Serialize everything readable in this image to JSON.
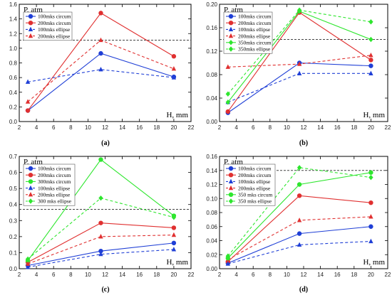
{
  "chart_data": [
    {
      "type": "line",
      "panel": "(a)",
      "ylabel": "P, atm",
      "xlabel": "H, mm",
      "xlim": [
        2,
        22
      ],
      "ylim": [
        0,
        1.6
      ],
      "xticks": [
        2,
        4,
        6,
        8,
        10,
        12,
        14,
        16,
        18,
        20,
        22
      ],
      "yticks": [
        0.0,
        0.2,
        0.4,
        0.6,
        0.8,
        1.0,
        1.2,
        1.4,
        1.6
      ],
      "ytick_labels": [
        "0.0",
        "0.2",
        "0.4",
        "0.6",
        "0.8",
        "1.0",
        "1.2",
        "1.4",
        "1.6"
      ],
      "reference_line": 1.11,
      "legend_position": "top-left",
      "series": [
        {
          "name": "100mks circum",
          "color": "#1f3fd6",
          "dash": "solid",
          "marker": "circle",
          "x": [
            3,
            11.5,
            20
          ],
          "y": [
            0.15,
            0.93,
            0.61
          ]
        },
        {
          "name": "200mks circum",
          "color": "#e03030",
          "dash": "solid",
          "marker": "circle",
          "x": [
            3,
            11.5,
            20
          ],
          "y": [
            0.15,
            1.48,
            0.89
          ]
        },
        {
          "name": "100mks ellipse",
          "color": "#1f3fd6",
          "dash": "dashed",
          "marker": "triangle",
          "x": [
            3,
            11.5,
            20
          ],
          "y": [
            0.54,
            0.71,
            0.6
          ]
        },
        {
          "name": "200mks ellipse",
          "color": "#e03030",
          "dash": "dashed",
          "marker": "triangle",
          "x": [
            3,
            11.5,
            20
          ],
          "y": [
            0.27,
            1.11,
            0.72
          ]
        }
      ]
    },
    {
      "type": "line",
      "panel": "(b)",
      "ylabel": "P, atm",
      "xlabel": "H, mm",
      "xlim": [
        2,
        22
      ],
      "ylim": [
        0,
        0.2
      ],
      "xticks": [
        2,
        4,
        6,
        8,
        10,
        12,
        14,
        16,
        18,
        20,
        22
      ],
      "yticks": [
        0.0,
        0.04,
        0.08,
        0.12,
        0.16,
        0.2
      ],
      "ytick_labels": [
        "0.00",
        "0.04",
        "0.08",
        "0.12",
        "0.16",
        "0.20"
      ],
      "reference_line": 0.14,
      "legend_position": "top-left",
      "series": [
        {
          "name": "100mks circum",
          "color": "#1f3fd6",
          "dash": "solid",
          "marker": "circle",
          "x": [
            3,
            11.5,
            20
          ],
          "y": [
            0.015,
            0.1,
            0.095
          ]
        },
        {
          "name": "200mks circum",
          "color": "#e03030",
          "dash": "solid",
          "marker": "circle",
          "x": [
            3,
            11.5,
            20
          ],
          "y": [
            0.017,
            0.186,
            0.105
          ]
        },
        {
          "name": "100mks ellipse",
          "color": "#1f3fd6",
          "dash": "dashed",
          "marker": "triangle",
          "x": [
            3,
            11.5,
            20
          ],
          "y": [
            0.033,
            0.082,
            0.082
          ]
        },
        {
          "name": "200mks ellipse",
          "color": "#e03030",
          "dash": "dashed",
          "marker": "triangle",
          "x": [
            3,
            11.5,
            20
          ],
          "y": [
            0.093,
            0.098,
            0.113
          ]
        },
        {
          "name": "350mks circum",
          "color": "#2ee62e",
          "dash": "solid",
          "marker": "diamond",
          "x": [
            3,
            11.5,
            20
          ],
          "y": [
            0.033,
            0.188,
            0.14
          ]
        },
        {
          "name": "350mks ellipse",
          "color": "#2ee62e",
          "dash": "dashed",
          "marker": "diamond",
          "x": [
            3,
            11.5,
            20
          ],
          "y": [
            0.047,
            0.19,
            0.17
          ]
        }
      ]
    },
    {
      "type": "line",
      "panel": "(c)",
      "ylabel": "P, atm",
      "xlabel": "H, mm",
      "xlim": [
        2,
        22
      ],
      "ylim": [
        0,
        0.7
      ],
      "xticks": [
        2,
        4,
        6,
        8,
        10,
        12,
        14,
        16,
        18,
        20,
        22
      ],
      "yticks": [
        0.0,
        0.1,
        0.2,
        0.3,
        0.4,
        0.5,
        0.6,
        0.7
      ],
      "ytick_labels": [
        "0.0",
        "0.1",
        "0.2",
        "0.3",
        "0.4",
        "0.5",
        "0.6",
        "0.7"
      ],
      "reference_line": 0.37,
      "legend_position": "top-left",
      "series": [
        {
          "name": "100mks circum",
          "color": "#1f3fd6",
          "dash": "solid",
          "marker": "circle",
          "x": [
            3,
            11.5,
            20
          ],
          "y": [
            0.02,
            0.11,
            0.16
          ]
        },
        {
          "name": "200mks circum",
          "color": "#e03030",
          "dash": "solid",
          "marker": "circle",
          "x": [
            3,
            11.5,
            20
          ],
          "y": [
            0.04,
            0.285,
            0.255
          ]
        },
        {
          "name": "300mks circum",
          "color": "#2ee62e",
          "dash": "solid",
          "marker": "circle",
          "x": [
            3,
            11.5,
            20
          ],
          "y": [
            0.05,
            0.68,
            0.33
          ]
        },
        {
          "name": "100mks ellipse",
          "color": "#1f3fd6",
          "dash": "dashed",
          "marker": "triangle",
          "x": [
            3,
            11.5,
            20
          ],
          "y": [
            0.01,
            0.09,
            0.12
          ]
        },
        {
          "name": "200mks ellipse",
          "color": "#e03030",
          "dash": "dashed",
          "marker": "triangle",
          "x": [
            3,
            11.5,
            20
          ],
          "y": [
            0.03,
            0.2,
            0.21
          ]
        },
        {
          "name": "300 mks ellipse",
          "color": "#2ee62e",
          "dash": "dashed",
          "marker": "diamond",
          "x": [
            3,
            11.5,
            20
          ],
          "y": [
            0.06,
            0.44,
            0.32
          ]
        }
      ]
    },
    {
      "type": "line",
      "panel": "(d)",
      "ylabel": "P, atm",
      "xlabel": "H, mm",
      "xlim": [
        2,
        22
      ],
      "ylim": [
        0,
        0.16
      ],
      "xticks": [
        2,
        4,
        6,
        8,
        10,
        12,
        14,
        16,
        18,
        20,
        22
      ],
      "yticks": [
        0.0,
        0.02,
        0.04,
        0.06,
        0.08,
        0.1,
        0.12,
        0.14,
        0.16
      ],
      "ytick_labels": [
        "0.00",
        "0.02",
        "0.04",
        "0.06",
        "0.08",
        "0.10",
        "0.12",
        "0.14",
        "0.16"
      ],
      "reference_line": 0.14,
      "legend_position": "top-left",
      "series": [
        {
          "name": "100mks circum",
          "color": "#1f3fd6",
          "dash": "solid",
          "marker": "circle",
          "x": [
            3,
            11.5,
            20
          ],
          "y": [
            0.008,
            0.05,
            0.06
          ]
        },
        {
          "name": "200mks circum",
          "color": "#e03030",
          "dash": "solid",
          "marker": "circle",
          "x": [
            3,
            11.5,
            20
          ],
          "y": [
            0.01,
            0.104,
            0.094
          ]
        },
        {
          "name": "100mks ellipse",
          "color": "#1f3fd6",
          "dash": "dashed",
          "marker": "triangle",
          "x": [
            3,
            11.5,
            20
          ],
          "y": [
            0.007,
            0.034,
            0.039
          ]
        },
        {
          "name": "200mks ellipse",
          "color": "#e03030",
          "dash": "dashed",
          "marker": "triangle",
          "x": [
            3,
            11.5,
            20
          ],
          "y": [
            0.013,
            0.069,
            0.074
          ]
        },
        {
          "name": "350 mks circum",
          "color": "#2ee62e",
          "dash": "solid",
          "marker": "circle",
          "x": [
            3,
            11.5,
            20
          ],
          "y": [
            0.015,
            0.12,
            0.137
          ]
        },
        {
          "name": "350 mks ellipse",
          "color": "#2ee62e",
          "dash": "dashed",
          "marker": "diamond",
          "x": [
            3,
            11.5,
            20
          ],
          "y": [
            0.018,
            0.144,
            0.13
          ]
        }
      ]
    }
  ]
}
